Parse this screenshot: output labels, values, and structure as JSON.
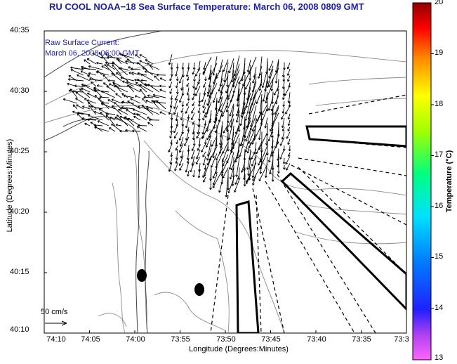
{
  "title": "RU COOL  NOAA−18  Sea Surface Temperature:  March 06, 2008 0809 GMT",
  "legend": {
    "line1": "Raw Surface Current:",
    "line2": "March 06, 2008 06:00 GMT"
  },
  "scale": {
    "label": "50 cm/s"
  },
  "axes": {
    "xlabel": "Longitude (Degrees:Minutes)",
    "ylabel": "Latitude (Degrees:Minutes)",
    "xticks": [
      "74:10",
      "74:05",
      "74:00",
      "73:55",
      "73:50",
      "73:45",
      "73:40",
      "73:35",
      "73:3"
    ],
    "yticks": [
      "40:35",
      "40:30",
      "40:25",
      "40:20",
      "40:15",
      "40:10"
    ]
  },
  "colorbar": {
    "label": "Temperature (°C)",
    "ticks": [
      "20",
      "19",
      "18",
      "17",
      "16",
      "15",
      "14",
      "13"
    ],
    "range": [
      13,
      20
    ]
  },
  "colors": {
    "title": "#1d1fa8",
    "legend_text": "#1d1fa8",
    "vectors": "#000000",
    "contours": "#8a8a8a"
  }
}
